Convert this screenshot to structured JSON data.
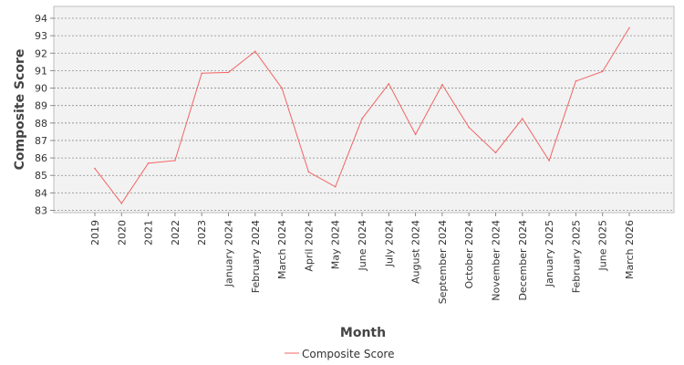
{
  "chart_data": {
    "type": "line",
    "xlabel": "Month",
    "ylabel": "Composite Score",
    "ylim": [
      82.9,
      94.5
    ],
    "yticks": [
      83,
      84,
      85,
      86,
      87,
      88,
      89,
      90,
      91,
      92,
      93,
      94
    ],
    "grid": true,
    "legend_position": "bottom-center",
    "colors": {
      "series": "#f26464",
      "plot_background": "#f2f2f2",
      "grid": "#8c8c8c"
    },
    "categories": [
      "2019",
      "2020",
      "2021",
      "2022",
      "2023",
      "January 2024",
      "February 2024",
      "March 2024",
      "April 2024",
      "May 2024",
      "June 2024",
      "July 2024",
      "August 2024",
      "September 2024",
      "October 2024",
      "November 2024",
      "December 2024",
      "January 2025",
      "February 2025",
      "June 2025",
      "March 2026"
    ],
    "series": [
      {
        "name": "Composite Score",
        "values": [
          85.4,
          83.4,
          85.7,
          85.85,
          90.85,
          90.9,
          92.1,
          90.0,
          85.2,
          84.35,
          88.25,
          90.25,
          87.35,
          90.2,
          87.75,
          86.3,
          88.25,
          85.85,
          90.4,
          90.95,
          93.45
        ]
      }
    ]
  }
}
